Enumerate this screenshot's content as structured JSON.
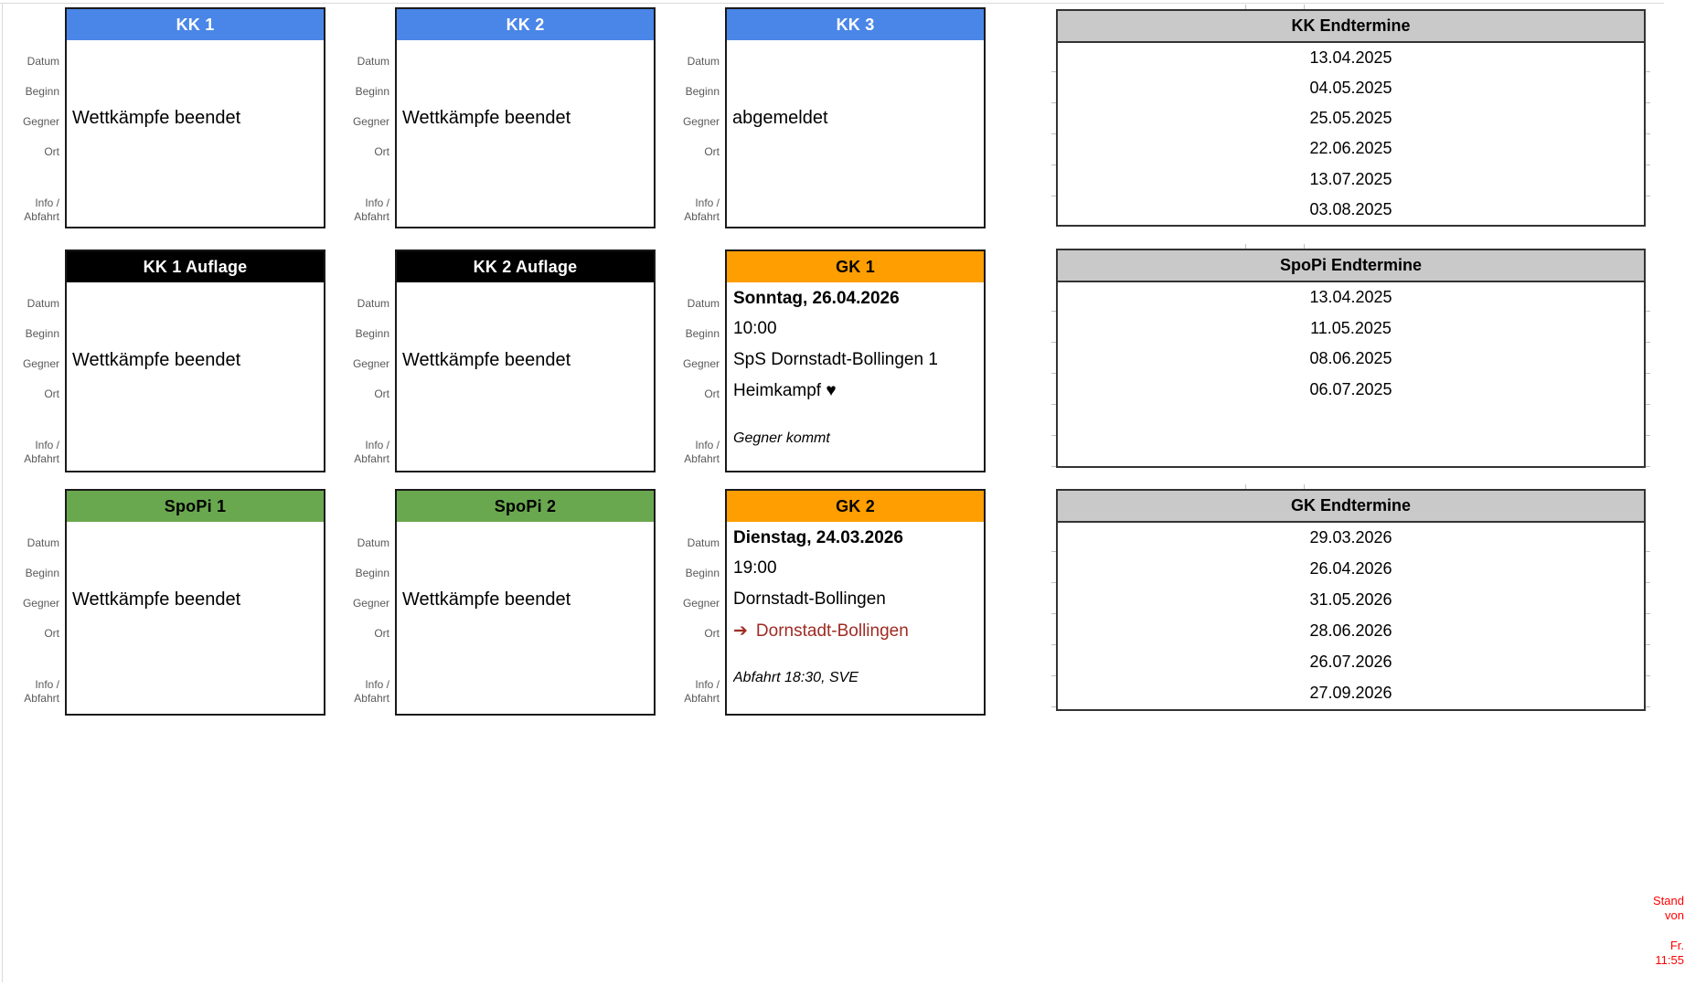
{
  "row_labels": {
    "datum": "Datum",
    "beginn": "Beginn",
    "gegner": "Gegner",
    "ort": "Ort",
    "info": "Info /",
    "abfahrt": "Abfahrt"
  },
  "cards": [
    {
      "title": "KK 1",
      "header_bg": "#4a86e8",
      "header_fg": "#ffffff",
      "status": "Wettkämpfe beendet"
    },
    {
      "title": "KK 2",
      "header_bg": "#4a86e8",
      "header_fg": "#ffffff",
      "status": "Wettkämpfe beendet"
    },
    {
      "title": "KK 3",
      "header_bg": "#4a86e8",
      "header_fg": "#ffffff",
      "status": "abgemeldet"
    },
    {
      "title": "KK 1 Auflage",
      "header_bg": "#000000",
      "header_fg": "#ffffff",
      "status": "Wettkämpfe beendet"
    },
    {
      "title": "KK 2 Auflage",
      "header_bg": "#000000",
      "header_fg": "#ffffff",
      "status": "Wettkämpfe beendet"
    },
    {
      "title": "GK 1",
      "header_bg": "#ff9e00",
      "header_fg": "#000000",
      "datum": "Sonntag, 26.04.2026",
      "beginn": "10:00",
      "gegner": "SpS Dornstadt-Bollingen 1",
      "ort": "Heimkampf ♥",
      "info": "Gegner kommt"
    },
    {
      "title": "SpoPi 1",
      "header_bg": "#6aa84f",
      "header_fg": "#000000",
      "status": "Wettkämpfe beendet"
    },
    {
      "title": "SpoPi 2",
      "header_bg": "#6aa84f",
      "header_fg": "#000000",
      "status": "Wettkämpfe beendet"
    },
    {
      "title": "GK 2",
      "header_bg": "#ff9e00",
      "header_fg": "#000000",
      "datum": "Dienstag, 24.03.2026",
      "beginn": "19:00",
      "gegner": "Dornstadt-Bollingen",
      "ort_arrow": "➔",
      "ort": "Dornstadt-Bollingen",
      "ort_color": "#9e2b23",
      "info": "Abfahrt 18:30, SVE"
    }
  ],
  "termine_tables": [
    {
      "title": "KK Endtermine",
      "header_bg": "#c9c9c9",
      "header_fg": "#000000",
      "dates": [
        "13.04.2025",
        "04.05.2025",
        "25.05.2025",
        "22.06.2025",
        "13.07.2025",
        "03.08.2025"
      ]
    },
    {
      "title": "SpoPi Endtermine",
      "header_bg": "#c9c9c9",
      "header_fg": "#000000",
      "dates": [
        "13.04.2025",
        "11.05.2025",
        "08.06.2025",
        "06.07.2025"
      ]
    },
    {
      "title": "GK Endtermine",
      "header_bg": "#c9c9c9",
      "header_fg": "#000000",
      "dates": [
        "29.03.2026",
        "26.04.2026",
        "31.05.2026",
        "28.06.2026",
        "26.07.2026",
        "27.09.2026"
      ]
    }
  ],
  "status_note": {
    "color": "#ff0000",
    "lines": [
      "Stand",
      "von",
      "Fr.",
      "11:55"
    ]
  }
}
